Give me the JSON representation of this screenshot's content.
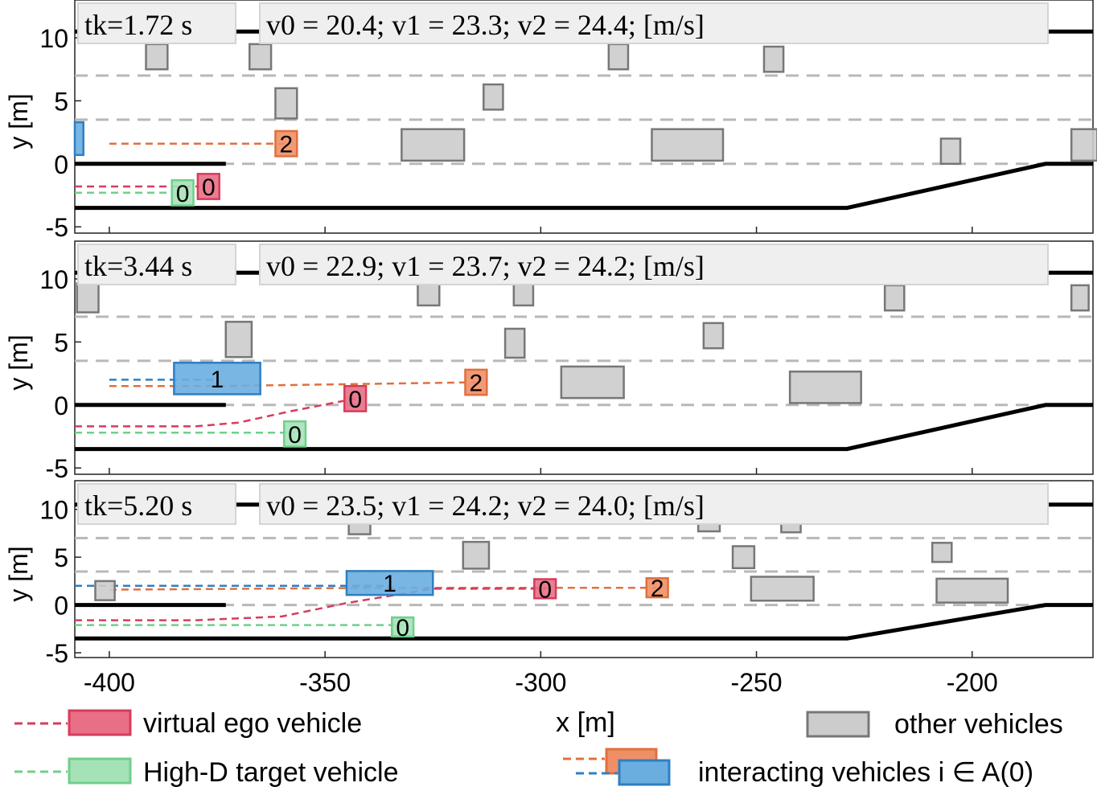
{
  "x_axis_label": "x [m]",
  "chart_data": [
    {
      "type": "scatter",
      "time_label": "tk=1.72 s",
      "speed_label": "v0 = 20.4; v1 = 23.3; v2 = 24.4; [m/s]",
      "xlabel": "x [m]",
      "ylabel": "y [m]",
      "xlim": [
        -408,
        -172
      ],
      "ylim": [
        -5.5,
        13
      ],
      "yticks": [
        -5,
        0,
        5,
        10
      ],
      "xticks": [
        -400,
        -350,
        -300,
        -250,
        -200
      ],
      "road": {
        "top_boundary": [
          [
            -408,
            10.5
          ],
          [
            -172,
            10.5
          ]
        ],
        "bottom_boundary": [
          [
            -408,
            -3.5
          ],
          [
            -229,
            -3.5
          ],
          [
            -183,
            0
          ],
          [
            -172,
            0
          ]
        ],
        "ramp_divider": [
          [
            -408,
            0
          ],
          [
            -373,
            0
          ]
        ],
        "lane_lines": [
          7.0,
          3.5,
          0
        ]
      },
      "vehicles": [
        {
          "role": "other",
          "x": -389,
          "y": 8.5,
          "length": 5,
          "width": 2
        },
        {
          "role": "other",
          "x": -365,
          "y": 8.5,
          "length": 5,
          "width": 2
        },
        {
          "role": "other",
          "x": -359,
          "y": 4.8,
          "length": 5,
          "width": 2.4
        },
        {
          "role": "other",
          "x": -311,
          "y": 5.3,
          "length": 4.5,
          "width": 2
        },
        {
          "role": "other",
          "x": -325,
          "y": 1.5,
          "length": 14.5,
          "width": 2.5
        },
        {
          "role": "other",
          "x": -282,
          "y": 8.5,
          "length": 4.5,
          "width": 2
        },
        {
          "role": "other",
          "x": -266,
          "y": 1.5,
          "length": 16.5,
          "width": 2.5
        },
        {
          "role": "other",
          "x": -246,
          "y": 8.3,
          "length": 4.5,
          "width": 2
        },
        {
          "role": "other",
          "x": -205,
          "y": 1.0,
          "length": 4.5,
          "width": 2
        },
        {
          "role": "other",
          "x": -174,
          "y": 1.5,
          "length": 6,
          "width": 2.5
        },
        {
          "role": "interacting",
          "id": "2",
          "x": -359,
          "y": 1.6,
          "length": 5,
          "width": 2
        },
        {
          "role": "interacting-1",
          "id": "",
          "x": -407,
          "y": 2.0,
          "length": 2,
          "width": 2.6
        },
        {
          "role": "ego",
          "id": "0",
          "x": -377,
          "y": -1.8,
          "length": 5,
          "width": 2
        },
        {
          "role": "target",
          "id": "0",
          "x": -383,
          "y": -2.3,
          "length": 5,
          "width": 2
        }
      ],
      "trajectories": [
        {
          "role": "interacting",
          "points": [
            [
              -400,
              1.6
            ],
            [
              -359,
              1.6
            ]
          ]
        },
        {
          "role": "ego",
          "points": [
            [
              -408,
              -1.8
            ],
            [
              -379,
              -1.8
            ]
          ]
        },
        {
          "role": "target",
          "points": [
            [
              -408,
              -2.3
            ],
            [
              -385,
              -2.3
            ]
          ]
        }
      ]
    },
    {
      "type": "scatter",
      "time_label": "tk=3.44 s",
      "speed_label": "v0 = 22.9; v1 = 23.7; v2 = 24.2; [m/s]",
      "xlabel": "x [m]",
      "ylabel": "y [m]",
      "xlim": [
        -408,
        -172
      ],
      "ylim": [
        -5.5,
        13
      ],
      "yticks": [
        -5,
        0,
        5,
        10
      ],
      "xticks": [
        -400,
        -350,
        -300,
        -250,
        -200
      ],
      "road": {
        "top_boundary": [
          [
            -408,
            10.5
          ],
          [
            -172,
            10.5
          ]
        ],
        "bottom_boundary": [
          [
            -408,
            -3.5
          ],
          [
            -229,
            -3.5
          ],
          [
            -183,
            0
          ],
          [
            -172,
            0
          ]
        ],
        "ramp_divider": [
          [
            -408,
            0
          ],
          [
            -373,
            0
          ]
        ],
        "lane_lines": [
          7.0,
          3.5,
          0
        ]
      },
      "vehicles": [
        {
          "role": "other",
          "x": -405,
          "y": 8.5,
          "length": 5,
          "width": 2.3
        },
        {
          "role": "other",
          "x": -370,
          "y": 5.2,
          "length": 6,
          "width": 2.8
        },
        {
          "role": "other",
          "x": -326,
          "y": 8.9,
          "length": 5,
          "width": 2
        },
        {
          "role": "other",
          "x": -304,
          "y": 8.9,
          "length": 4.5,
          "width": 2
        },
        {
          "role": "other",
          "x": -306,
          "y": 4.9,
          "length": 4.5,
          "width": 2.3
        },
        {
          "role": "other",
          "x": -288,
          "y": 1.8,
          "length": 14.5,
          "width": 2.5
        },
        {
          "role": "other",
          "x": -260,
          "y": 5.5,
          "length": 4.5,
          "width": 2
        },
        {
          "role": "other",
          "x": -234,
          "y": 1.4,
          "length": 16.5,
          "width": 2.5
        },
        {
          "role": "other",
          "x": -218,
          "y": 8.5,
          "length": 4.5,
          "width": 2
        },
        {
          "role": "other",
          "x": -175,
          "y": 8.5,
          "length": 4,
          "width": 2
        },
        {
          "role": "interacting-1",
          "id": "1",
          "x": -375,
          "y": 2.1,
          "length": 20,
          "width": 2.5
        },
        {
          "role": "interacting",
          "id": "2",
          "x": -315,
          "y": 1.8,
          "length": 5,
          "width": 2
        },
        {
          "role": "ego",
          "id": "0",
          "x": -343,
          "y": 0.5,
          "length": 5,
          "width": 2
        },
        {
          "role": "target",
          "id": "0",
          "x": -357,
          "y": -2.3,
          "length": 5,
          "width": 2
        }
      ],
      "trajectories": [
        {
          "role": "interacting-1",
          "points": [
            [
              -400,
              2.0
            ],
            [
              -375,
              2.0
            ]
          ]
        },
        {
          "role": "interacting",
          "points": [
            [
              -400,
              1.5
            ],
            [
              -375,
              1.5
            ],
            [
              -315,
              1.8
            ]
          ]
        },
        {
          "role": "ego",
          "points": [
            [
              -408,
              -1.7
            ],
            [
              -380,
              -1.7
            ],
            [
              -370,
              -1.4
            ],
            [
              -358,
              -0.5
            ],
            [
              -343,
              0.5
            ]
          ]
        },
        {
          "role": "target",
          "points": [
            [
              -408,
              -2.2
            ],
            [
              -357,
              -2.2
            ]
          ]
        }
      ]
    },
    {
      "type": "scatter",
      "time_label": "tk=5.20 s",
      "speed_label": "v0 = 23.5; v1 = 24.2; v2 = 24.0; [m/s]",
      "xlabel": "x [m]",
      "ylabel": "y [m]",
      "xlim": [
        -408,
        -172
      ],
      "ylim": [
        -5.5,
        13
      ],
      "yticks": [
        -5,
        0,
        5,
        10
      ],
      "xticks": [
        -400,
        -350,
        -300,
        -250,
        -200
      ],
      "road": {
        "top_boundary": [
          [
            -408,
            10.5
          ],
          [
            -172,
            10.5
          ]
        ],
        "bottom_boundary": [
          [
            -408,
            -3.5
          ],
          [
            -229,
            -3.5
          ],
          [
            -183,
            0
          ],
          [
            -172,
            0
          ]
        ],
        "ramp_divider": [
          [
            -408,
            0
          ],
          [
            -373,
            0
          ]
        ],
        "lane_lines": [
          7.0,
          3.5,
          0
        ]
      },
      "vehicles": [
        {
          "role": "other",
          "x": -401,
          "y": 1.5,
          "length": 4.5,
          "width": 2
        },
        {
          "role": "other",
          "x": -342,
          "y": 8.5,
          "length": 5,
          "width": 2.2
        },
        {
          "role": "other",
          "x": -315,
          "y": 5.2,
          "length": 6,
          "width": 2.8
        },
        {
          "role": "other",
          "x": -261,
          "y": 8.7,
          "length": 5,
          "width": 2
        },
        {
          "role": "other",
          "x": -253,
          "y": 5.0,
          "length": 5,
          "width": 2.3
        },
        {
          "role": "other",
          "x": -244,
          "y": 1.7,
          "length": 14.5,
          "width": 2.5
        },
        {
          "role": "other",
          "x": -242,
          "y": 8.6,
          "length": 4.5,
          "width": 2
        },
        {
          "role": "other",
          "x": -207,
          "y": 5.5,
          "length": 4.5,
          "width": 2
        },
        {
          "role": "other",
          "x": -200,
          "y": 1.5,
          "length": 16.5,
          "width": 2.5
        },
        {
          "role": "interacting-1",
          "id": "1",
          "x": -335,
          "y": 2.3,
          "length": 20,
          "width": 2.5
        },
        {
          "role": "interacting",
          "id": "2",
          "x": -273,
          "y": 1.8,
          "length": 5,
          "width": 2
        },
        {
          "role": "ego",
          "id": "0",
          "x": -299,
          "y": 1.7,
          "length": 5,
          "width": 2
        },
        {
          "role": "target",
          "id": "0",
          "x": -332,
          "y": -2.3,
          "length": 5,
          "width": 2
        }
      ],
      "trajectories": [
        {
          "role": "interacting-1",
          "points": [
            [
              -408,
              2.0
            ],
            [
              -335,
              2.0
            ]
          ]
        },
        {
          "role": "interacting",
          "points": [
            [
              -400,
              1.6
            ],
            [
              -335,
              1.8
            ],
            [
              -273,
              1.8
            ]
          ]
        },
        {
          "role": "ego",
          "points": [
            [
              -408,
              -1.6
            ],
            [
              -380,
              -1.6
            ],
            [
              -360,
              -1.2
            ],
            [
              -345,
              0.2
            ],
            [
              -325,
              1.7
            ],
            [
              -299,
              1.7
            ]
          ]
        },
        {
          "role": "target",
          "points": [
            [
              -408,
              -2.1
            ],
            [
              -332,
              -2.1
            ]
          ]
        }
      ]
    }
  ],
  "legend": {
    "ego": "virtual ego vehicle",
    "target": "High-D target vehicle",
    "other": "other vehicles",
    "interacting": "interacting vehicles i ∈ A(0)"
  },
  "colors": {
    "ego_fill": "#e86f85",
    "ego_edge": "#d63c5c",
    "target_fill": "#a6e2b8",
    "target_edge": "#6fcf8b",
    "interacting_fill": "#ef8f66",
    "interacting_edge": "#e0703f",
    "interacting1_fill": "#6aaee0",
    "interacting1_edge": "#2f7fc1",
    "other_fill": "#cccccc",
    "other_edge": "#777777",
    "traj_ego": "#d63c5c",
    "traj_target": "#6fcf8b",
    "traj_interacting": "#e0703f",
    "traj_interacting1": "#2f7fc1",
    "lane_dash": "#b8b8b8",
    "road": "#000000",
    "label_box": "#efefef"
  }
}
